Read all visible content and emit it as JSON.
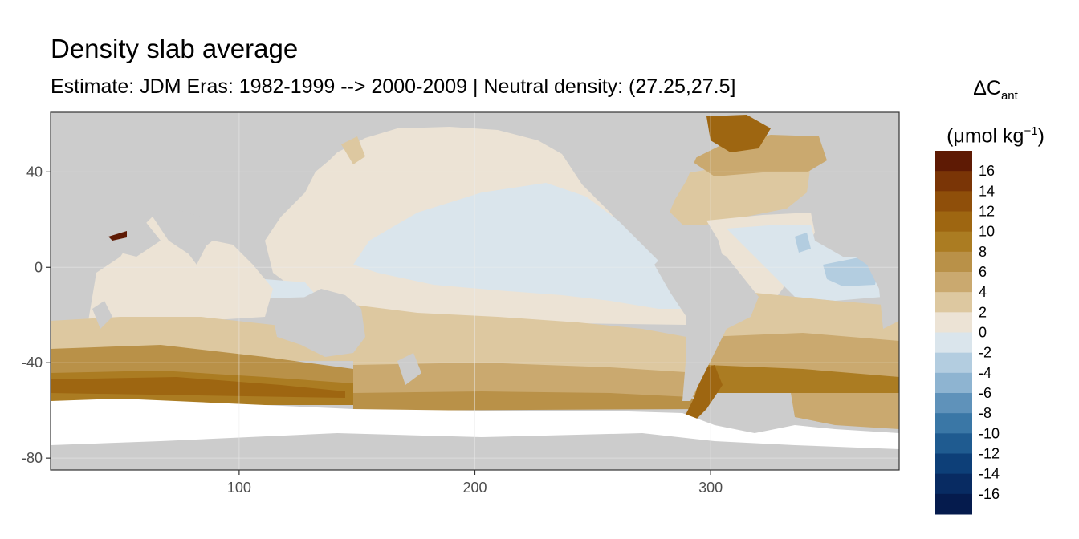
{
  "title": "Density slab average",
  "subtitle": "Estimate: JDM Eras: 1982-1999 --> 2000-2009 | Neutral density: (27.25,27.5]",
  "legend": {
    "title_delta": "ΔC",
    "title_sub": "ant",
    "unit_prefix": "(μmol kg",
    "unit_sup": "−1",
    "unit_suffix": ")",
    "labels": [
      "16",
      "14",
      "12",
      "10",
      "8",
      "6",
      "4",
      "2",
      "0",
      "-2",
      "-4",
      "-6",
      "-8",
      "-10",
      "-12",
      "-14",
      "-16"
    ],
    "colors": [
      "#5e1a04",
      "#7a3506",
      "#8f4f0a",
      "#9e6611",
      "#ab7c22",
      "#b99148",
      "#caa96f",
      "#ddc8a0",
      "#ece3d5",
      "#dae5ec",
      "#b3cde0",
      "#8eb4d1",
      "#5f92ba",
      "#3a77a6",
      "#1f5b90",
      "#0d3f78",
      "#082b62",
      "#051b4d"
    ]
  },
  "map": {
    "land_color": "#cccccc",
    "ice_color": "#ffffff",
    "x_ticks": [
      "100",
      "200",
      "300"
    ],
    "y_ticks": [
      "40",
      "0",
      "-40",
      "-80"
    ],
    "xlim": [
      20,
      380
    ],
    "ylim": [
      -85,
      65
    ]
  }
}
